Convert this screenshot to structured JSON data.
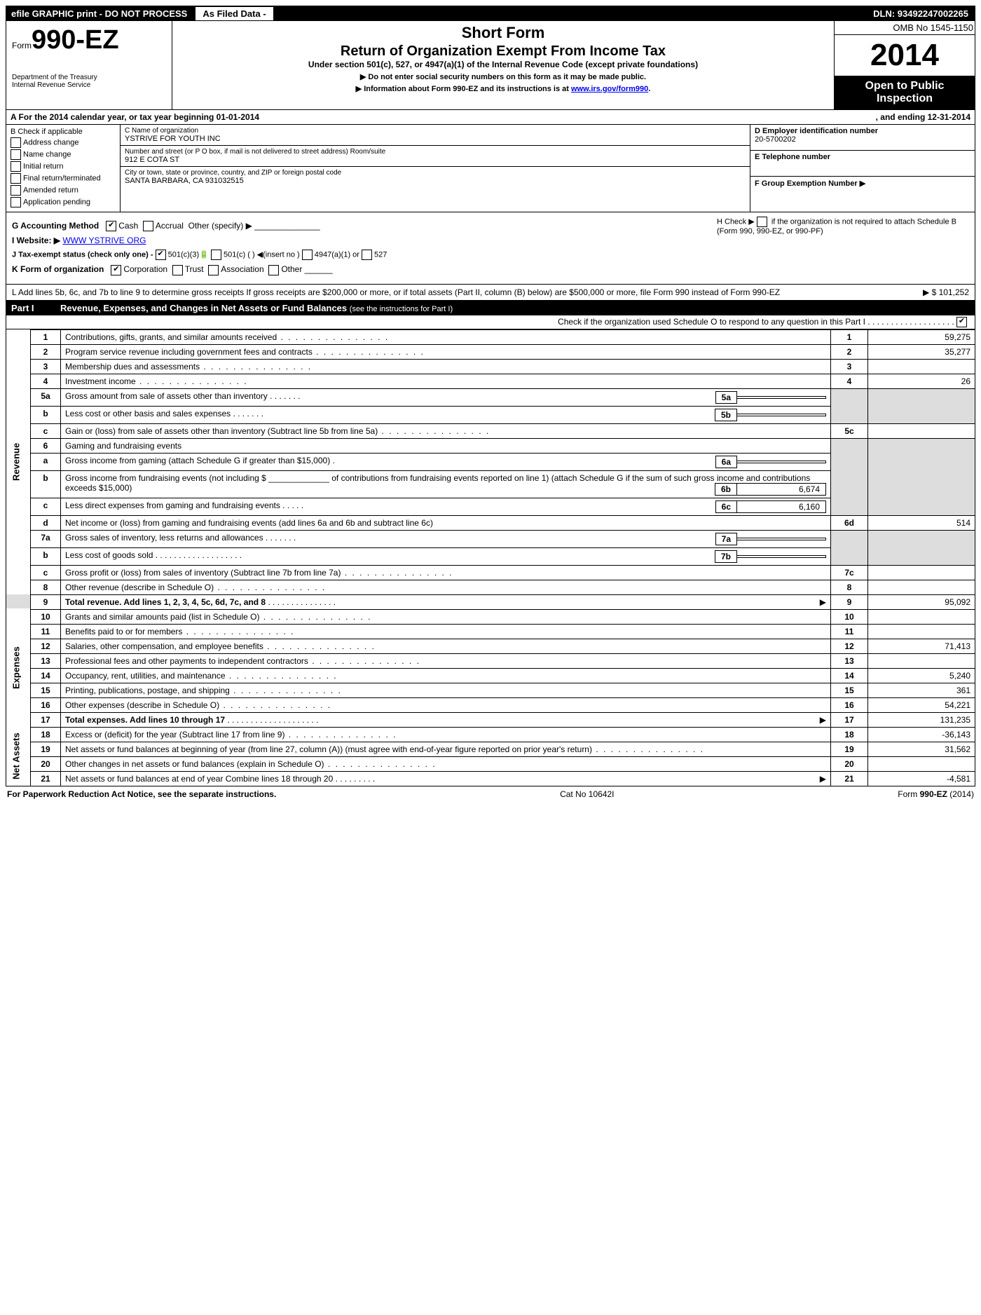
{
  "topbar": {
    "left": "efile GRAPHIC print - DO NOT PROCESS",
    "mid": "As Filed Data -",
    "right": "DLN: 93492247002265"
  },
  "header": {
    "form_prefix": "Form",
    "form_number": "990-EZ",
    "dept1": "Department of the Treasury",
    "dept2": "Internal Revenue Service",
    "short_form": "Short Form",
    "return_title": "Return of Organization Exempt From Income Tax",
    "under_section": "Under section 501(c), 527, or 4947(a)(1) of the Internal Revenue Code (except private foundations)",
    "arrow1": "▶ Do not enter social security numbers on this form as it may be made public.",
    "arrow2_pre": "▶ Information about Form 990-EZ and its instructions is at ",
    "arrow2_link": "www.irs.gov/form990",
    "arrow2_post": ".",
    "omb": "OMB No 1545-1150",
    "year": "2014",
    "open1": "Open to Public",
    "open2": "Inspection"
  },
  "rowA": {
    "label": "A  For the 2014 calendar year, or tax year beginning 01-01-2014",
    "ending": ", and ending 12-31-2014"
  },
  "colB": {
    "title": "B  Check if applicable",
    "items": [
      "Address change",
      "Name change",
      "Initial return",
      "Final return/terminated",
      "Amended return",
      "Application pending"
    ]
  },
  "colC": {
    "name_lbl": "C Name of organization",
    "name": "YSTRIVE FOR YOUTH INC",
    "street_lbl": "Number and street (or P O box, if mail is not delivered to street address) Room/suite",
    "street": "912 E COTA ST",
    "city_lbl": "City or town, state or province, country, and ZIP or foreign postal code",
    "city": "SANTA BARBARA, CA  931032515"
  },
  "colD": {
    "ein_lbl": "D Employer identification number",
    "ein": "20-5700202",
    "tel_lbl": "E Telephone number",
    "tel": "",
    "grp_lbl": "F Group Exemption Number  ▶",
    "grp": ""
  },
  "ghijk": {
    "g": "G Accounting Method",
    "g_cash": "Cash",
    "g_accrual": "Accrual",
    "g_other": "Other (specify) ▶",
    "h1": "H  Check ▶",
    "h2": "if the organization is not required to attach Schedule B (Form 990, 990-EZ, or 990-PF)",
    "i_pre": "I Website: ▶ ",
    "i_link": "WWW YSTRIVE ORG",
    "j": "J Tax-exempt status (check only one) -",
    "j1": "501(c)(3)",
    "j2": "501(c) (   ) ◀(insert no )",
    "j3": "4947(a)(1) or",
    "j4": "527",
    "k": "K Form of organization",
    "k1": "Corporation",
    "k2": "Trust",
    "k3": "Association",
    "k4": "Other"
  },
  "lnote": {
    "text": "L Add lines 5b, 6c, and 7b to line 9 to determine gross receipts  If gross receipts are $200,000 or more, or if total assets (Part II, column (B) below) are $500,000 or more, file Form 990 instead of Form 990-EZ",
    "amt": "▶ $ 101,252"
  },
  "part1": {
    "label": "Part I",
    "title": "Revenue, Expenses, and Changes in Net Assets or Fund Balances",
    "sub": "(see the instructions for Part I)",
    "check_line": "Check if the organization used Schedule O to respond to any question in this Part I . . . . . . . . . . . . . . . . . . .",
    "side_rev": "Revenue",
    "side_exp": "Expenses",
    "side_net": "Net Assets"
  },
  "lines": {
    "l1": {
      "no": "1",
      "desc": "Contributions, gifts, grants, and similar amounts received",
      "amt": "59,275"
    },
    "l2": {
      "no": "2",
      "desc": "Program service revenue including government fees and contracts",
      "amt": "35,277"
    },
    "l3": {
      "no": "3",
      "desc": "Membership dues and assessments",
      "amt": ""
    },
    "l4": {
      "no": "4",
      "desc": "Investment income",
      "amt": "26"
    },
    "l5a": {
      "no": "5a",
      "desc": "Gross amount from sale of assets other than inventory",
      "sub": "5a",
      "subamt": ""
    },
    "l5b": {
      "no": "b",
      "desc": "Less  cost or other basis and sales expenses",
      "sub": "5b",
      "subamt": ""
    },
    "l5c": {
      "no": "c",
      "desc": "Gain or (loss) from sale of assets other than inventory (Subtract line 5b from line 5a)",
      "col": "5c",
      "amt": ""
    },
    "l6": {
      "no": "6",
      "desc": "Gaming and fundraising events"
    },
    "l6a": {
      "no": "a",
      "desc": "Gross income from gaming (attach Schedule G if greater than $15,000)",
      "sub": "6a",
      "subamt": ""
    },
    "l6b": {
      "no": "b",
      "desc": "Gross income from fundraising events (not including $ _____________ of contributions from fundraising events reported on line 1) (attach Schedule G if the sum of such gross income and contributions exceeds $15,000)",
      "sub": "6b",
      "subamt": "6,674"
    },
    "l6c": {
      "no": "c",
      "desc": "Less  direct expenses from gaming and fundraising events",
      "sub": "6c",
      "subamt": "6,160"
    },
    "l6d": {
      "no": "d",
      "desc": "Net income or (loss) from gaming and fundraising events (add lines 6a and 6b and subtract line 6c)",
      "col": "6d",
      "amt": "514"
    },
    "l7a": {
      "no": "7a",
      "desc": "Gross sales of inventory, less returns and allowances",
      "sub": "7a",
      "subamt": ""
    },
    "l7b": {
      "no": "b",
      "desc": "Less  cost of goods sold",
      "sub": "7b",
      "subamt": ""
    },
    "l7c": {
      "no": "c",
      "desc": "Gross profit or (loss) from sales of inventory (Subtract line 7b from line 7a)",
      "col": "7c",
      "amt": ""
    },
    "l8": {
      "no": "8",
      "desc": "Other revenue (describe in Schedule O)",
      "amt": ""
    },
    "l9": {
      "no": "9",
      "desc": "Total revenue. Add lines 1, 2, 3, 4, 5c, 6d, 7c, and 8",
      "bold": true,
      "arrow": "▶",
      "amt": "95,092"
    },
    "l10": {
      "no": "10",
      "desc": "Grants and similar amounts paid (list in Schedule O)",
      "amt": ""
    },
    "l11": {
      "no": "11",
      "desc": "Benefits paid to or for members",
      "amt": ""
    },
    "l12": {
      "no": "12",
      "desc": "Salaries, other compensation, and employee benefits",
      "amt": "71,413"
    },
    "l13": {
      "no": "13",
      "desc": "Professional fees and other payments to independent contractors",
      "amt": ""
    },
    "l14": {
      "no": "14",
      "desc": "Occupancy, rent, utilities, and maintenance",
      "amt": "5,240"
    },
    "l15": {
      "no": "15",
      "desc": "Printing, publications, postage, and shipping",
      "amt": "361"
    },
    "l16": {
      "no": "16",
      "desc": "Other expenses (describe in Schedule O)",
      "amt": "54,221"
    },
    "l17": {
      "no": "17",
      "desc": "Total expenses. Add lines 10 through 17",
      "bold": true,
      "arrow": "▶",
      "amt": "131,235"
    },
    "l18": {
      "no": "18",
      "desc": "Excess or (deficit) for the year (Subtract line 17 from line 9)",
      "amt": "-36,143"
    },
    "l19": {
      "no": "19",
      "desc": "Net assets or fund balances at beginning of year (from line 27, column (A)) (must agree with end-of-year figure reported on prior year's return)",
      "amt": "31,562"
    },
    "l20": {
      "no": "20",
      "desc": "Other changes in net assets or fund balances (explain in Schedule O)",
      "amt": ""
    },
    "l21": {
      "no": "21",
      "desc": "Net assets or fund balances at end of year Combine lines 18 through 20",
      "arrow": "▶",
      "amt": "-4,581"
    }
  },
  "footer": {
    "left": "For Paperwork Reduction Act Notice, see the separate instructions.",
    "mid": "Cat No 10642I",
    "right": "Form 990-EZ (2014)"
  }
}
